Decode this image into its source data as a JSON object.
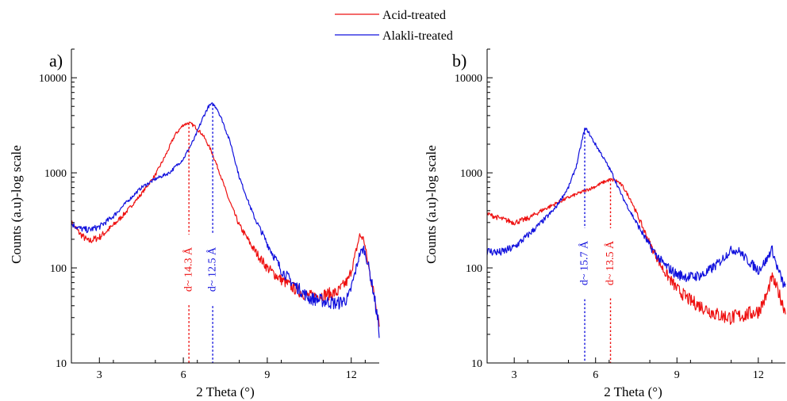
{
  "legend": {
    "placement": "top-center",
    "entries": [
      {
        "label": "Acid-treated",
        "color": "#ee1111"
      },
      {
        "label": "Alakli-treated",
        "color": "#1111dd"
      }
    ]
  },
  "chart_data": [
    {
      "type": "line",
      "panel_label": "a)",
      "xlabel": "2 Theta (°)",
      "ylabel": "Counts (a.u)-log scale",
      "xlim": [
        2,
        13
      ],
      "ylim": [
        10,
        20000
      ],
      "y_scale": "log",
      "x_ticks": [
        3,
        6,
        9,
        12
      ],
      "y_ticks": [
        10,
        100,
        1000,
        10000
      ],
      "series": [
        {
          "name": "Acid-treated",
          "color": "#ee1111",
          "x": [
            2.0,
            2.3,
            2.6,
            3.0,
            3.5,
            4.0,
            4.5,
            5.0,
            5.4,
            5.7,
            6.0,
            6.2,
            6.4,
            6.7,
            7.0,
            7.3,
            7.6,
            8.0,
            8.5,
            9.0,
            9.5,
            10.0,
            10.5,
            11.0,
            11.5,
            11.9,
            12.1,
            12.3,
            12.45,
            12.6,
            12.8,
            13.0
          ],
          "y": [
            300,
            230,
            190,
            210,
            280,
            400,
            600,
            950,
            1600,
            2500,
            3200,
            3350,
            3100,
            2500,
            1700,
            1000,
            550,
            280,
            160,
            100,
            75,
            60,
            50,
            52,
            55,
            75,
            120,
            220,
            200,
            110,
            55,
            28
          ]
        },
        {
          "name": "Alakli-treated",
          "color": "#1111dd",
          "x": [
            2.0,
            2.3,
            2.6,
            3.0,
            3.5,
            4.0,
            4.5,
            5.0,
            5.5,
            6.0,
            6.4,
            6.7,
            6.9,
            7.05,
            7.2,
            7.4,
            7.7,
            8.0,
            8.5,
            9.0,
            9.5,
            10.0,
            10.5,
            11.0,
            11.5,
            11.9,
            12.1,
            12.3,
            12.45,
            12.6,
            12.8,
            13.0
          ],
          "y": [
            290,
            260,
            250,
            270,
            350,
            500,
            700,
            860,
            1000,
            1400,
            2300,
            3800,
            5000,
            5300,
            4800,
            3500,
            2000,
            900,
            360,
            180,
            95,
            65,
            48,
            45,
            42,
            48,
            80,
            140,
            160,
            110,
            55,
            22
          ]
        }
      ],
      "annotations": [
        {
          "text": "d~ 14.3 Å",
          "x": 6.2,
          "color": "#ee1111"
        },
        {
          "text": "d~ 12.5 Å",
          "x": 7.05,
          "color": "#1111dd"
        }
      ]
    },
    {
      "type": "line",
      "panel_label": "b)",
      "xlabel": "2 Theta (°)",
      "ylabel": "Counts (a.u)-log scale",
      "xlim": [
        2,
        13
      ],
      "ylim": [
        10,
        20000
      ],
      "y_scale": "log",
      "x_ticks": [
        3,
        6,
        9,
        12
      ],
      "y_ticks": [
        10,
        100,
        1000,
        10000
      ],
      "series": [
        {
          "name": "Acid-treated",
          "color": "#ee1111",
          "x": [
            2.0,
            2.5,
            3.0,
            3.5,
            4.0,
            4.5,
            5.0,
            5.5,
            6.0,
            6.3,
            6.55,
            6.8,
            7.0,
            7.3,
            7.6,
            8.0,
            8.5,
            9.0,
            9.5,
            10.0,
            10.5,
            11.0,
            11.5,
            12.0,
            12.3,
            12.5,
            12.7,
            13.0
          ],
          "y": [
            370,
            330,
            300,
            330,
            400,
            470,
            550,
            630,
            720,
            800,
            850,
            820,
            720,
            520,
            330,
            180,
            95,
            60,
            45,
            38,
            32,
            30,
            32,
            35,
            50,
            80,
            60,
            35
          ]
        },
        {
          "name": "Alakli-treated",
          "color": "#1111dd",
          "x": [
            2.0,
            2.5,
            3.0,
            3.5,
            4.0,
            4.5,
            5.0,
            5.3,
            5.5,
            5.6,
            5.7,
            5.9,
            6.2,
            6.6,
            7.0,
            7.5,
            8.0,
            8.5,
            9.0,
            9.5,
            10.0,
            10.5,
            11.0,
            11.3,
            11.6,
            12.0,
            12.3,
            12.5,
            12.7,
            13.0
          ],
          "y": [
            150,
            145,
            165,
            220,
            300,
            420,
            700,
            1200,
            2200,
            2900,
            2800,
            2200,
            1600,
            1000,
            550,
            300,
            170,
            110,
            85,
            80,
            85,
            110,
            155,
            150,
            120,
            95,
            120,
            160,
            100,
            60
          ]
        }
      ],
      "annotations": [
        {
          "text": "d~ 15.7 Å",
          "x": 5.6,
          "color": "#1111dd"
        },
        {
          "text": "d~ 13.5 Å",
          "x": 6.55,
          "color": "#ee1111"
        }
      ]
    }
  ]
}
